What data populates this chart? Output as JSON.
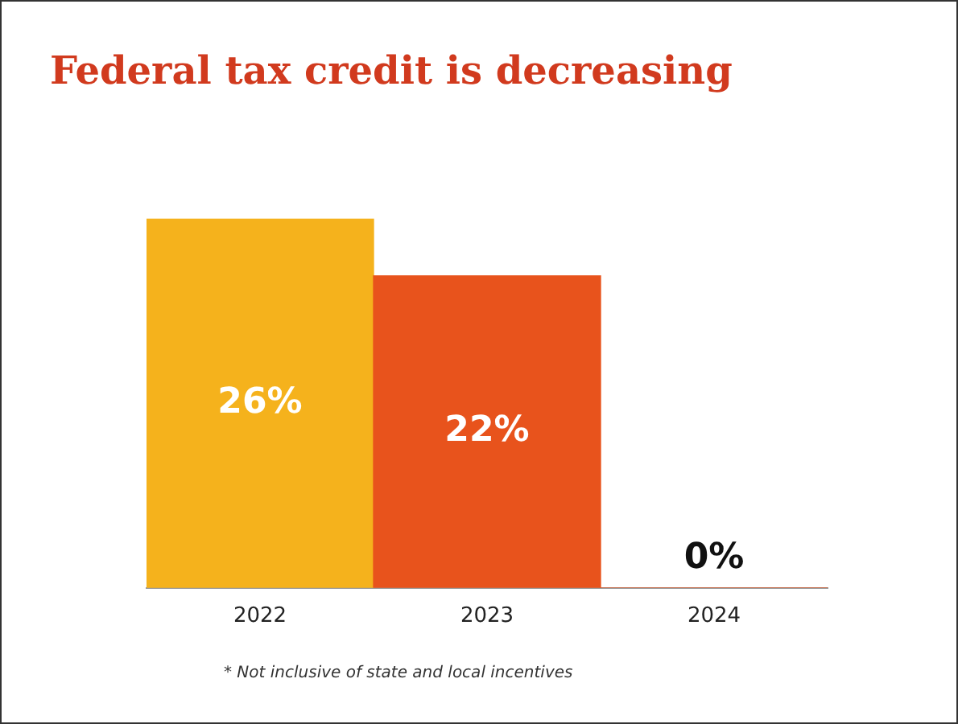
{
  "chart_data": {
    "type": "bar",
    "title": "Federal tax credit is decreasing",
    "categories": [
      "2022",
      "2023",
      "2024"
    ],
    "values": [
      26,
      22,
      0
    ],
    "colors": [
      "#f5b21c",
      "#e8531c",
      "#e8531c"
    ],
    "value_labels": [
      "26%",
      "22%",
      "0%"
    ],
    "annotations": [
      "* Not inclusive of state and local incentives"
    ],
    "grid": false,
    "legend": false
  }
}
